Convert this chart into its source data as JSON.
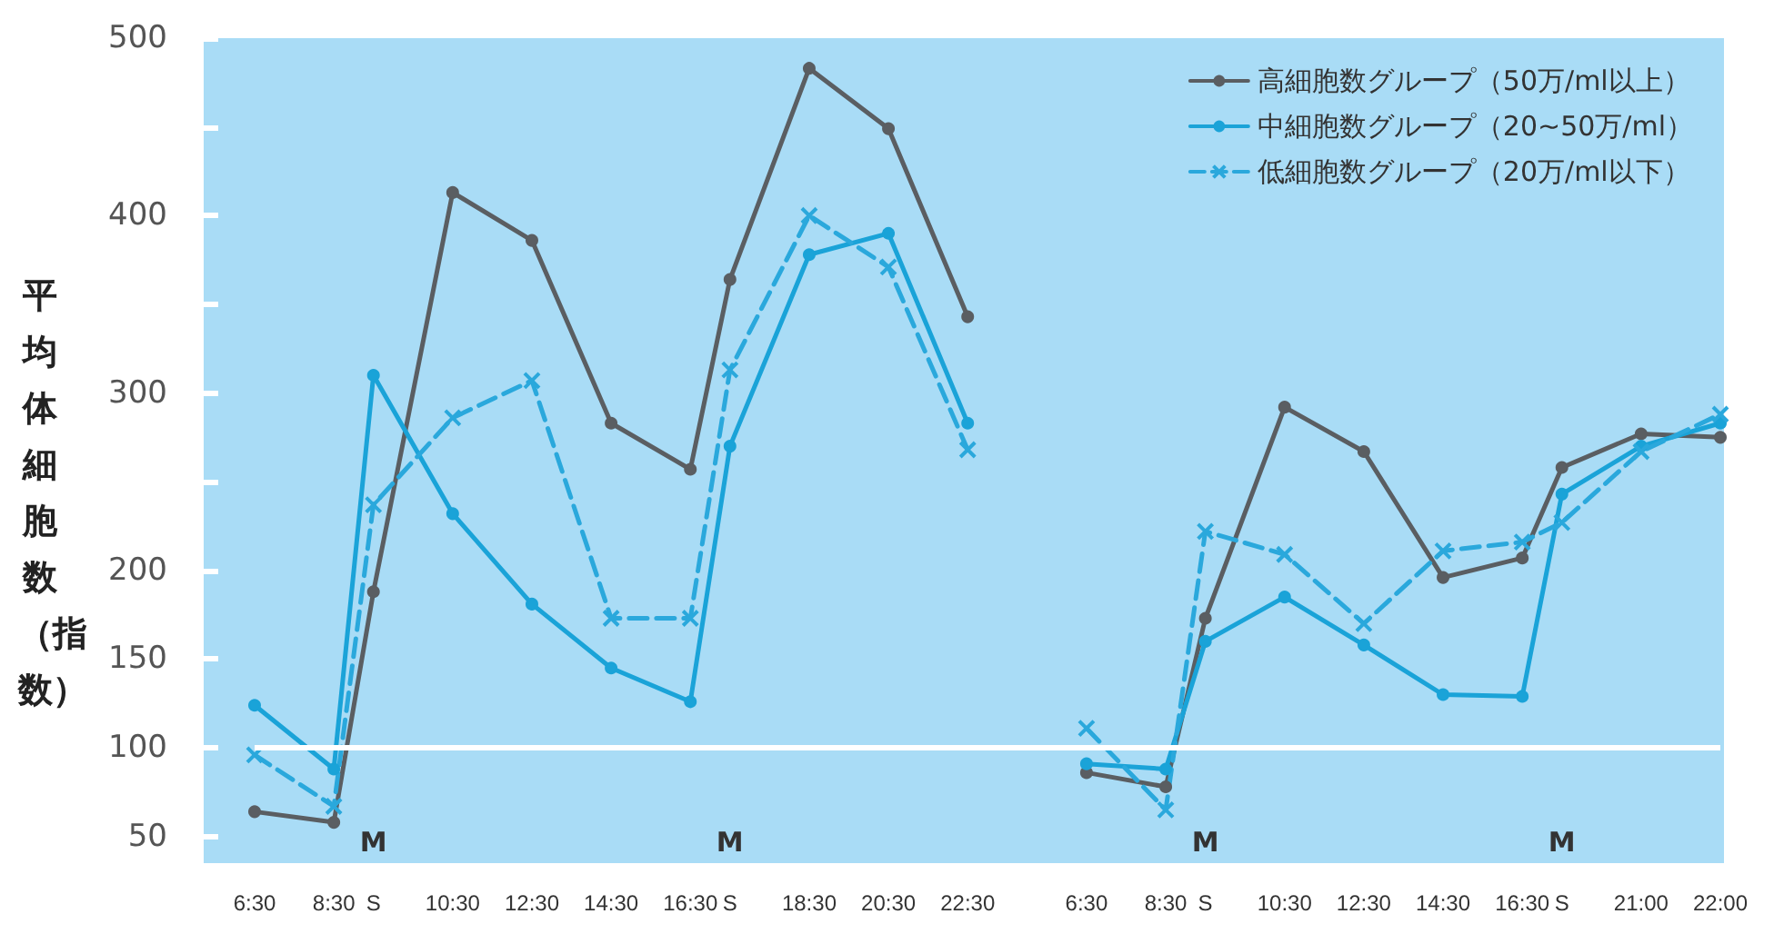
{
  "chart_data": {
    "type": "line",
    "ylabel": "平均体細胞数（指数）",
    "categories": [
      "6:30",
      null,
      "8:30",
      "S",
      null,
      "10:30",
      null,
      "12:30",
      null,
      "14:30",
      null,
      "16:30",
      "S",
      null,
      "18:30",
      null,
      "20:30",
      null,
      "22:30",
      null,
      null,
      "6:30",
      null,
      "8:30",
      "S",
      null,
      "10:30",
      null,
      "12:30",
      null,
      "14:30",
      null,
      "16:30",
      "S",
      null,
      "21:00",
      null,
      "22:00"
    ],
    "series": [
      {
        "name": "高細胞数グループ（50万/ml以上）",
        "color": "#5a5e62",
        "marker": "circle",
        "line_style": "solid",
        "values": [
          64,
          null,
          58,
          188,
          null,
          413,
          null,
          386,
          null,
          283,
          null,
          257,
          364,
          null,
          483,
          null,
          449,
          null,
          343,
          null,
          null,
          null,
          null,
          null,
          null,
          null,
          null,
          null,
          null,
          null,
          null,
          null,
          null,
          null,
          null,
          null,
          null,
          null
        ]
      },
      {
        "name": "中細胞数グループ（20~50万/ml）",
        "color": "#1aa3d8",
        "marker": "circle",
        "line_style": "solid",
        "values": [
          124,
          null,
          88,
          310,
          null,
          232,
          null,
          181,
          null,
          145,
          null,
          126,
          270,
          null,
          378,
          null,
          390,
          null,
          283,
          null,
          null,
          null,
          null,
          null,
          null,
          null,
          null,
          null,
          null,
          null,
          null,
          null,
          null,
          null,
          null,
          null,
          null,
          null
        ]
      },
      {
        "name": "低細胞数グループ（20万/ml以下）",
        "color": "#2aa8dc",
        "marker": "cross",
        "line_style": "dashed",
        "values": [
          96,
          null,
          67,
          237,
          null,
          286,
          null,
          307,
          null,
          173,
          null,
          173,
          313,
          null,
          400,
          null,
          371,
          null,
          268,
          null,
          null,
          null,
          null,
          null,
          null,
          null,
          null,
          null,
          null,
          null,
          null,
          null,
          null,
          null,
          null,
          null,
          null,
          null
        ]
      },
      {
        "color": "#5a5e62",
        "marker": "circle",
        "line_style": "solid",
        "values": [
          null,
          null,
          null,
          null,
          null,
          null,
          null,
          null,
          null,
          null,
          null,
          null,
          null,
          null,
          null,
          null,
          null,
          null,
          null,
          null,
          null,
          86,
          null,
          78,
          173,
          null,
          292,
          null,
          267,
          null,
          196,
          null,
          207,
          258,
          null,
          277,
          null,
          275
        ]
      },
      {
        "color": "#1aa3d8",
        "marker": "circle",
        "line_style": "solid",
        "values": [
          null,
          null,
          null,
          null,
          null,
          null,
          null,
          null,
          null,
          null,
          null,
          null,
          null,
          null,
          null,
          null,
          null,
          null,
          null,
          null,
          null,
          91,
          null,
          88,
          160,
          null,
          185,
          null,
          158,
          null,
          130,
          null,
          129,
          243,
          null,
          270,
          null,
          283
        ]
      },
      {
        "color": "#2aa8dc",
        "marker": "cross",
        "line_style": "dashed",
        "values": [
          null,
          null,
          null,
          null,
          null,
          null,
          null,
          null,
          null,
          null,
          null,
          null,
          null,
          null,
          null,
          null,
          null,
          null,
          null,
          null,
          null,
          111,
          null,
          65,
          222,
          null,
          209,
          null,
          170,
          null,
          211,
          null,
          216,
          227,
          null,
          267,
          null,
          288
        ]
      }
    ],
    "ylim": [
      35,
      500
    ],
    "yticks": [
      50,
      100,
      150,
      200,
      {
        "value": 250,
        "label": null
      },
      300,
      {
        "value": 350,
        "label": null
      },
      400,
      {
        "value": 450,
        "label": null
      },
      500
    ],
    "ref_lines": [
      {
        "axis": "y",
        "value": 100,
        "color": "#ffffff",
        "line_style": "solid"
      }
    ],
    "annotations": [
      "M",
      "M",
      "M",
      "M"
    ],
    "grid": false,
    "legend": "top right"
  }
}
